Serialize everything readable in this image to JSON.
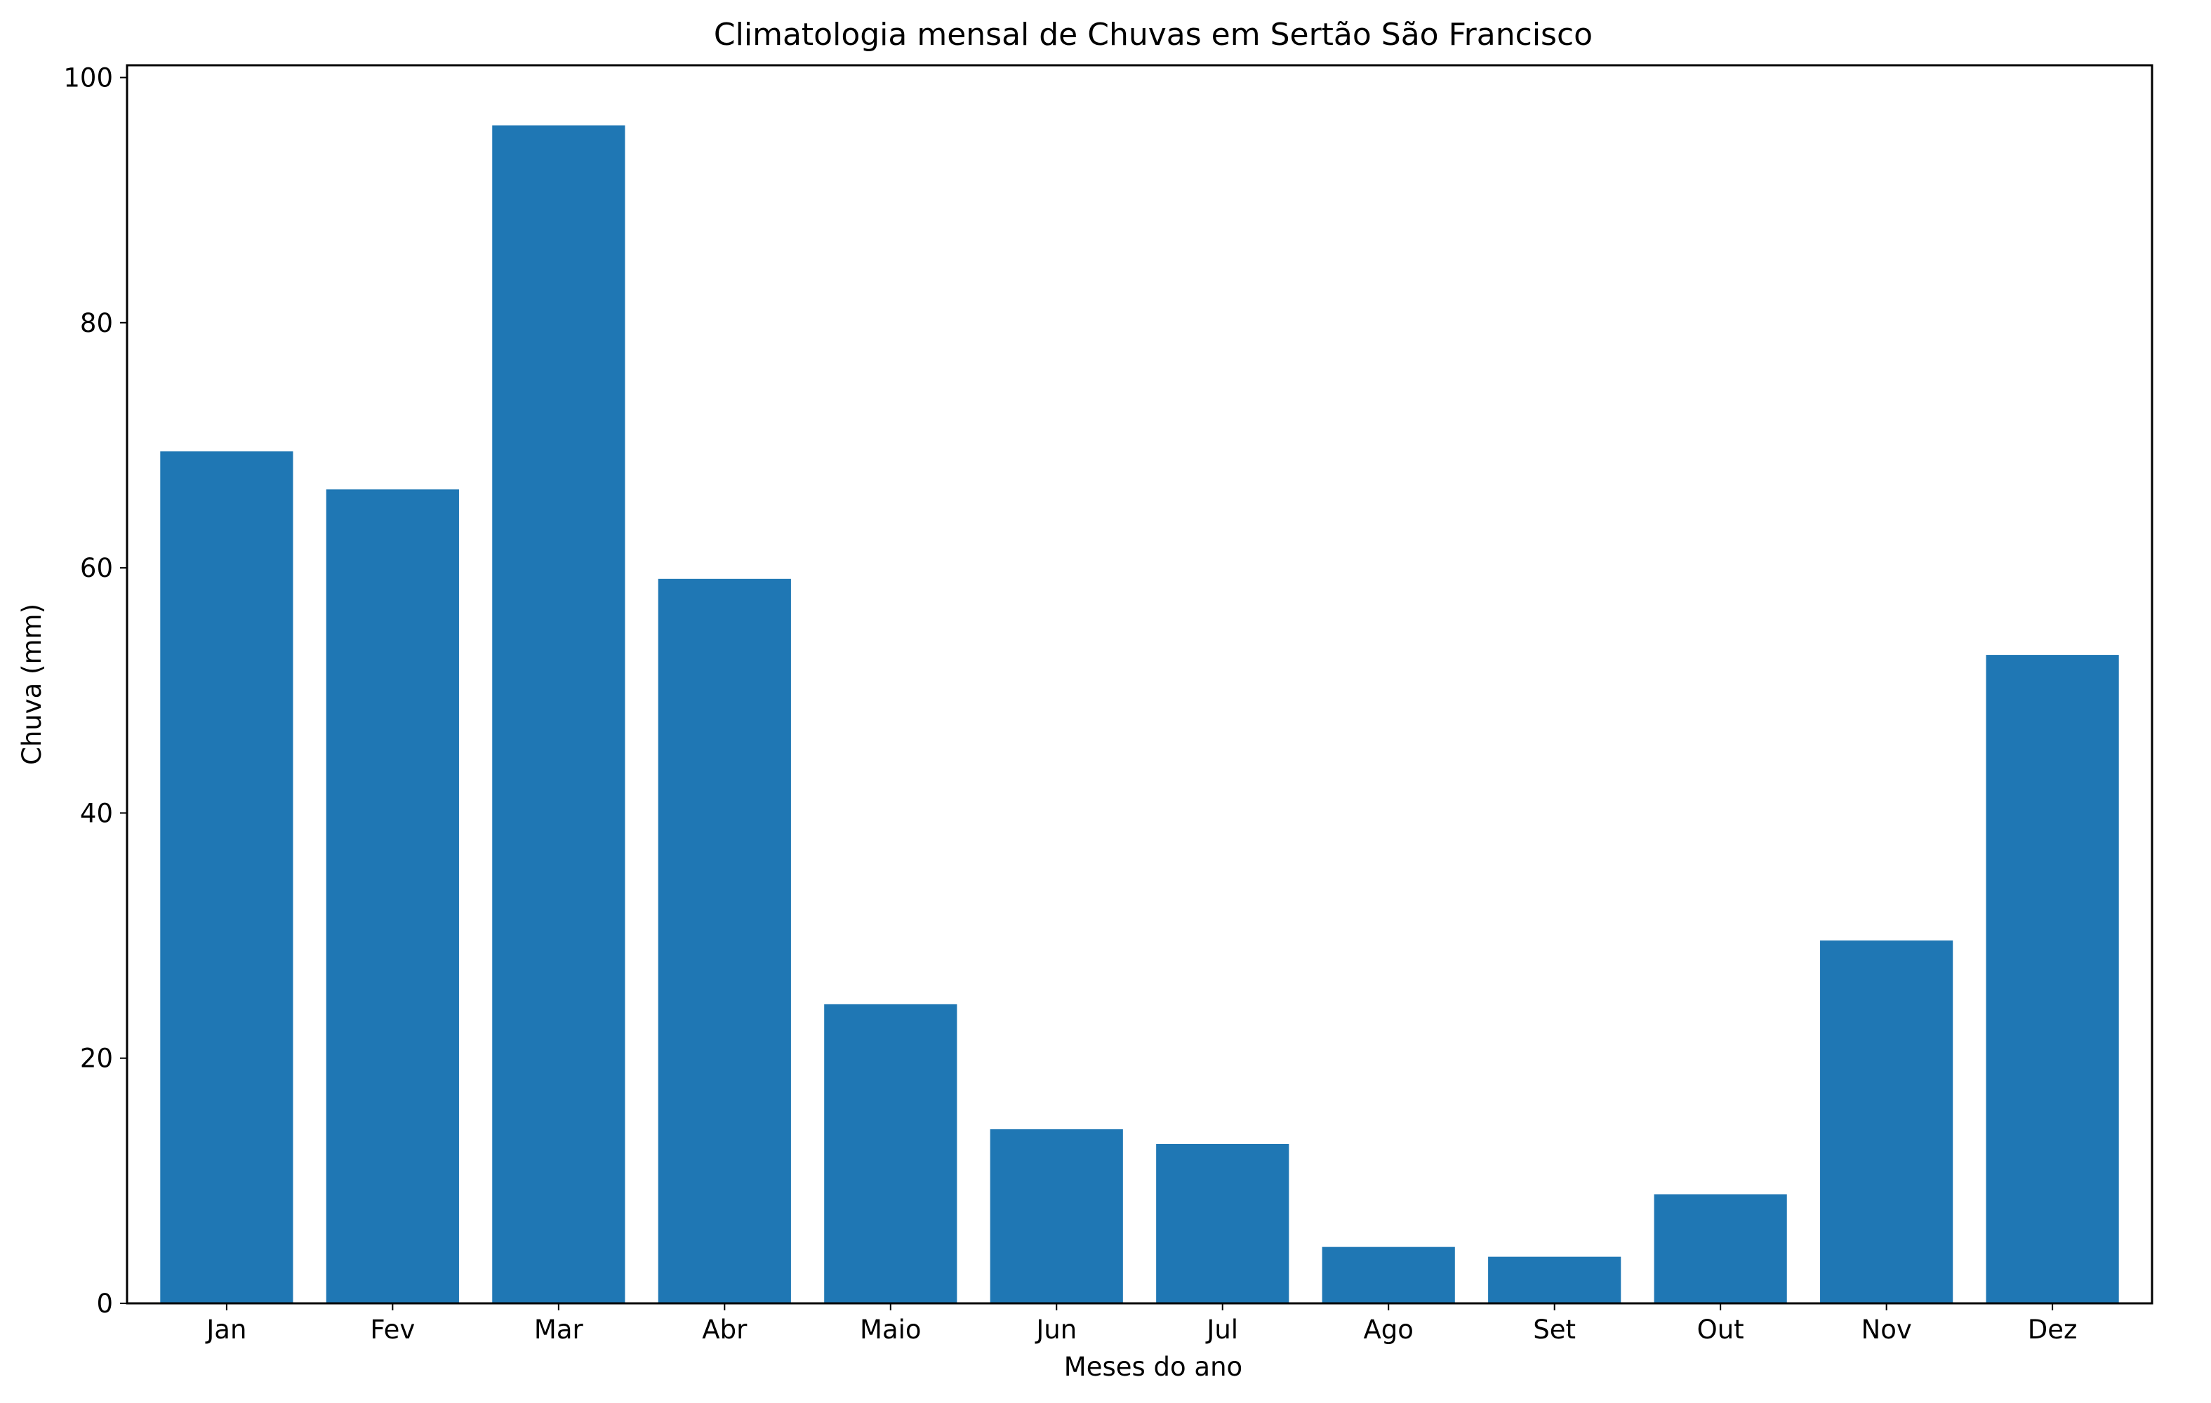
{
  "colors": {
    "bar": "#1f77b4",
    "axis": "#000000",
    "background": "#ffffff"
  },
  "chart_data": {
    "type": "bar",
    "title": "Climatologia mensal de Chuvas em Sertão São Francisco",
    "xlabel": "Meses do ano",
    "ylabel": "Chuva (mm)",
    "categories": [
      "Jan",
      "Fev",
      "Mar",
      "Abr",
      "Maio",
      "Jun",
      "Jul",
      "Ago",
      "Set",
      "Out",
      "Nov",
      "Dez"
    ],
    "values": [
      69.5,
      66.4,
      96.1,
      59.1,
      24.4,
      14.2,
      13.0,
      4.6,
      3.8,
      8.9,
      29.6,
      52.9
    ],
    "ylim": [
      0,
      101
    ],
    "yticks": [
      0,
      20,
      40,
      60,
      80,
      100
    ],
    "grid": false,
    "legend": "none"
  }
}
